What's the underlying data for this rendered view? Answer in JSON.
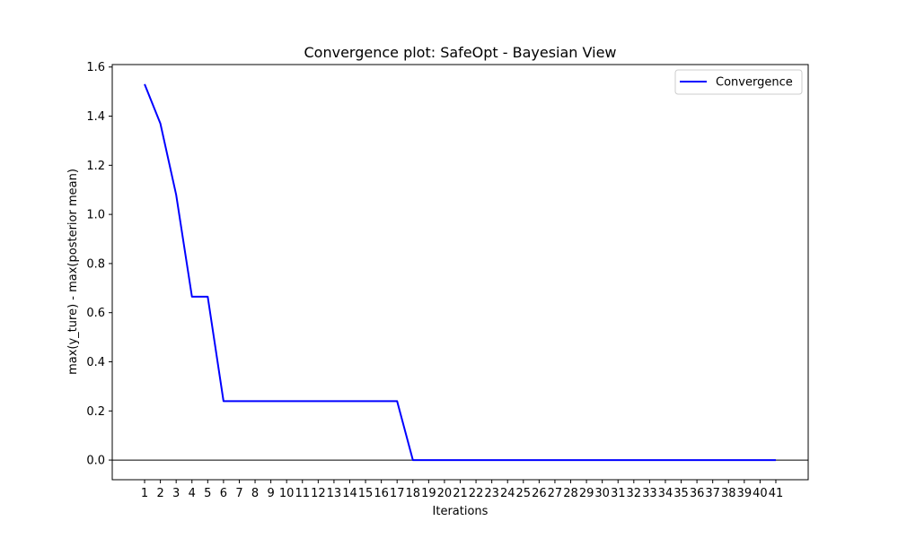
{
  "chart_data": {
    "type": "line",
    "title": "Convergence plot: SafeOpt - Bayesian View",
    "xlabel": "Iterations",
    "ylabel": "max(y_ture) - max(posterior mean)",
    "x": [
      1,
      2,
      3,
      4,
      5,
      6,
      7,
      8,
      9,
      10,
      11,
      12,
      13,
      14,
      15,
      16,
      17,
      18,
      19,
      20,
      21,
      22,
      23,
      24,
      25,
      26,
      27,
      28,
      29,
      30,
      31,
      32,
      33,
      34,
      35,
      36,
      37,
      38,
      39,
      40,
      41
    ],
    "x_ticks": [
      "1",
      "2",
      "3",
      "4",
      "5",
      "6",
      "7",
      "8",
      "9",
      "10",
      "11",
      "12",
      "13",
      "14",
      "15",
      "16",
      "17",
      "18",
      "19",
      "20",
      "21",
      "22",
      "23",
      "24",
      "25",
      "26",
      "27",
      "28",
      "29",
      "30",
      "31",
      "32",
      "33",
      "34",
      "35",
      "36",
      "37",
      "38",
      "39",
      "40",
      "41"
    ],
    "xlim": [
      -1.05,
      43.05
    ],
    "ylim": [
      -0.08,
      1.61
    ],
    "y_ticks": [
      "0.0",
      "0.2",
      "0.4",
      "0.6",
      "0.8",
      "1.0",
      "1.2",
      "1.4",
      "1.6"
    ],
    "y_tick_values": [
      0.0,
      0.2,
      0.4,
      0.6,
      0.8,
      1.0,
      1.2,
      1.4,
      1.6
    ],
    "series": [
      {
        "name": "Convergence",
        "color": "#0000ff",
        "values": [
          1.53,
          1.37,
          1.08,
          0.665,
          0.665,
          0.24,
          0.24,
          0.24,
          0.24,
          0.24,
          0.24,
          0.24,
          0.24,
          0.24,
          0.24,
          0.24,
          0.24,
          0.0,
          0.0,
          0.0,
          0.0,
          0.0,
          0.0,
          0.0,
          0.0,
          0.0,
          0.0,
          0.0,
          0.0,
          0.0,
          0.0,
          0.0,
          0.0,
          0.0,
          0.0,
          0.0,
          0.0,
          0.0,
          0.0,
          0.0,
          0.0
        ]
      }
    ],
    "hline": {
      "y": 0.0,
      "color": "#000000"
    },
    "grid": false,
    "legend": "top-right"
  }
}
